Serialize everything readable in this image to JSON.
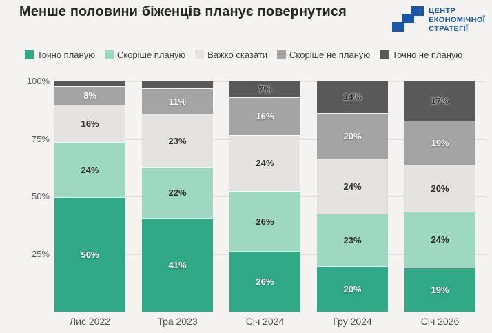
{
  "page": {
    "background": "#f4f3f2",
    "gridline_color": "#e2e0dd"
  },
  "header": {
    "title": "Менше половини біженців планує повернутися",
    "logo": {
      "lines": [
        "ЦЕНТР",
        "ЕКОНОМІЧНОЇ",
        "СТРАТЕГІЇ"
      ],
      "color": "#1b57a8"
    }
  },
  "chart_data": {
    "type": "bar",
    "subtype": "stacked-percent-column",
    "categories": [
      "Лис 2022",
      "Тра 2023",
      "Січ 2024",
      "Гру 2024",
      "Січ 2026"
    ],
    "series": [
      {
        "name": "Точно планую",
        "color": "#31a886",
        "label_style": "light",
        "values": [
          50,
          41,
          26,
          20,
          19
        ],
        "labels": [
          "50%",
          "41%",
          "26%",
          "20%",
          "19%"
        ]
      },
      {
        "name": "Скоріше планую",
        "color": "#9fd8c2",
        "label_style": "dark",
        "values": [
          24,
          22,
          26,
          23,
          24
        ],
        "labels": [
          "24%",
          "22%",
          "26%",
          "23%",
          "24%"
        ]
      },
      {
        "name": "Важко сказати",
        "color": "#e4e3e2",
        "label_style": "dark",
        "values": [
          16,
          23,
          24,
          24,
          20
        ],
        "labels": [
          "16%",
          "23%",
          "24%",
          "24%",
          "20%"
        ]
      },
      {
        "name": "Скоріше не планую",
        "color": "#a4a4a4",
        "label_style": "light",
        "values": [
          8,
          11,
          16,
          20,
          19
        ],
        "labels": [
          "8%",
          "11%",
          "16%",
          "20%",
          "19%"
        ]
      },
      {
        "name": "Точно не планую",
        "color": "#595959",
        "label_style": "dark-halo",
        "values": [
          2,
          3,
          7,
          14,
          17
        ],
        "labels": [
          "",
          "",
          "7%",
          "14%",
          "17%"
        ]
      }
    ],
    "yticks": [
      {
        "pct": 25,
        "label": "25%"
      },
      {
        "pct": 50,
        "label": "50%"
      },
      {
        "pct": 75,
        "label": "75%"
      },
      {
        "pct": 100,
        "label": "100%"
      }
    ],
    "ylim": [
      0,
      100
    ],
    "legend_position": "top",
    "grid": true
  }
}
